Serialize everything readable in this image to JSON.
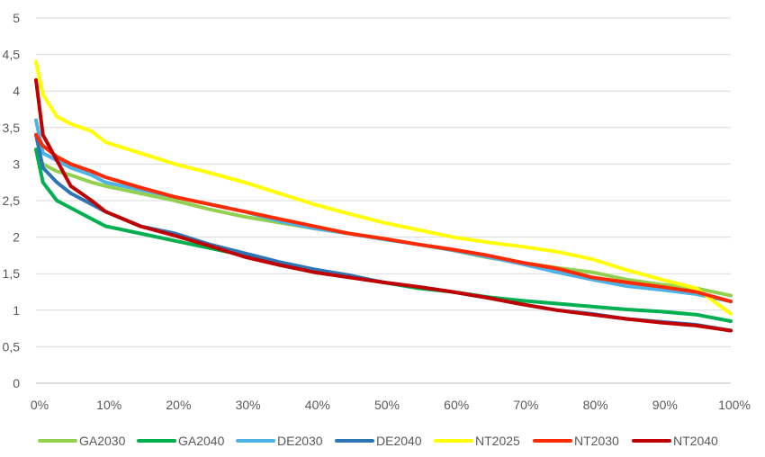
{
  "chart_data": {
    "type": "line",
    "title": "",
    "xlabel": "",
    "ylabel": "",
    "xlim": [
      0,
      100
    ],
    "ylim": [
      0,
      5
    ],
    "grid": true,
    "legend_position": "bottom",
    "x_ticks": [
      "0%",
      "10%",
      "20%",
      "30%",
      "40%",
      "50%",
      "60%",
      "70%",
      "80%",
      "90%",
      "100%"
    ],
    "y_ticks": [
      "0",
      "0,5",
      "1",
      "1,5",
      "2",
      "2,5",
      "3",
      "3,5",
      "4",
      "4,5",
      "5"
    ],
    "x": [
      0,
      1,
      3,
      5,
      8,
      10,
      15,
      20,
      25,
      30,
      35,
      40,
      45,
      50,
      55,
      60,
      65,
      70,
      75,
      80,
      85,
      90,
      95,
      100
    ],
    "series": [
      {
        "name": "GA2030",
        "color": "#92d050",
        "values": [
          3.2,
          3.0,
          2.9,
          2.85,
          2.75,
          2.7,
          2.6,
          2.5,
          2.38,
          2.28,
          2.2,
          2.12,
          2.05,
          1.98,
          1.9,
          1.82,
          1.72,
          1.65,
          1.58,
          1.52,
          1.42,
          1.35,
          1.3,
          1.2
        ]
      },
      {
        "name": "GA2040",
        "color": "#00b050",
        "values": [
          3.2,
          2.75,
          2.5,
          2.4,
          2.25,
          2.15,
          2.05,
          1.95,
          1.85,
          1.75,
          1.65,
          1.55,
          1.47,
          1.38,
          1.3,
          1.25,
          1.18,
          1.13,
          1.09,
          1.05,
          1.01,
          0.98,
          0.94,
          0.85
        ]
      },
      {
        "name": "DE2030",
        "color": "#4db3e6",
        "values": [
          3.6,
          3.15,
          3.05,
          2.95,
          2.85,
          2.75,
          2.65,
          2.55,
          2.45,
          2.35,
          2.22,
          2.12,
          2.05,
          1.97,
          1.9,
          1.82,
          1.73,
          1.63,
          1.52,
          1.42,
          1.33,
          1.28,
          1.22,
          1.12
        ]
      },
      {
        "name": "DE2040",
        "color": "#2e75b6",
        "values": [
          3.4,
          2.95,
          2.75,
          2.6,
          2.45,
          2.35,
          2.15,
          2.05,
          1.9,
          1.78,
          1.66,
          1.56,
          1.48,
          1.38,
          1.32,
          1.25,
          1.17,
          1.08,
          1.0,
          0.95,
          0.88,
          0.84,
          0.8,
          0.72
        ]
      },
      {
        "name": "NT2025",
        "color": "#ffff00",
        "values": [
          4.4,
          3.95,
          3.65,
          3.55,
          3.45,
          3.3,
          3.15,
          3.0,
          2.88,
          2.75,
          2.6,
          2.45,
          2.32,
          2.2,
          2.1,
          2.0,
          1.93,
          1.87,
          1.8,
          1.7,
          1.55,
          1.42,
          1.3,
          0.95
        ]
      },
      {
        "name": "NT2030",
        "color": "#ff2a00",
        "values": [
          3.4,
          3.25,
          3.1,
          3.0,
          2.9,
          2.82,
          2.68,
          2.55,
          2.45,
          2.35,
          2.25,
          2.15,
          2.05,
          1.98,
          1.9,
          1.83,
          1.75,
          1.65,
          1.57,
          1.45,
          1.38,
          1.32,
          1.25,
          1.12
        ]
      },
      {
        "name": "NT2040",
        "color": "#c00000",
        "values": [
          4.15,
          3.4,
          3.05,
          2.7,
          2.5,
          2.35,
          2.15,
          2.02,
          1.88,
          1.73,
          1.62,
          1.52,
          1.45,
          1.38,
          1.32,
          1.25,
          1.17,
          1.08,
          1.0,
          0.94,
          0.88,
          0.83,
          0.79,
          0.72
        ]
      }
    ]
  }
}
